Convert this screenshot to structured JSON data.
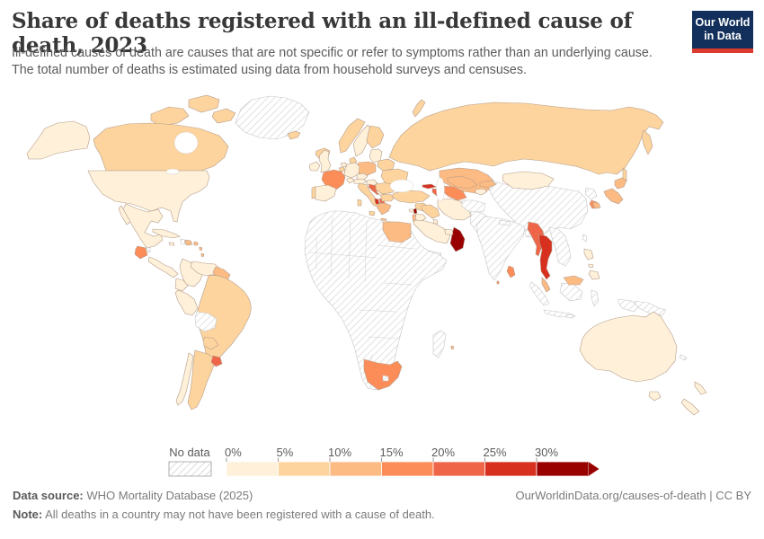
{
  "header": {
    "title": "Share of deaths registered with an ill-defined cause of death, 2023",
    "subtitle_lines": [
      "Ill-defined causes of death are causes that are not specific or refer to symptoms rather than an underlying cause.",
      "The total number of deaths is estimated using data from household surveys and censuses."
    ],
    "logo": {
      "line1": "Our World",
      "line2": "in Data",
      "bg_color": "#12305b",
      "accent_color": "#dc3b2e"
    }
  },
  "chart_data": {
    "type": "choropleth-map",
    "metric": "Share of deaths registered with an ill-defined cause of death",
    "year": "2023",
    "legend": {
      "no_data_label": "No data",
      "tick_labels": [
        "0%",
        "5%",
        "10%",
        "15%",
        "20%",
        "25%",
        "30%"
      ],
      "bins": [
        "0-5%",
        "5-10%",
        "10-15%",
        "15-20%",
        "20-25%",
        "25-30%",
        "30%+"
      ],
      "bin_colors": {
        "0-5%": "#fef0d9",
        "5-10%": "#fdd49e",
        "10-15%": "#fdbb84",
        "15-20%": "#fc8d59",
        "20-25%": "#ef6548",
        "25-30%": "#d7301f",
        "30%+": "#990000"
      }
    },
    "regions": {
      "united-states": "0-5%",
      "canada": "5-10%",
      "greenland": "no-data",
      "mexico": "0-5%",
      "guatemala": "15-20%",
      "belize": "no-data",
      "central-america": "0-5%",
      "cuba": "0-5%",
      "jamaica": "0-5%",
      "haiti": "no-data",
      "dominican-republic": "10-15%",
      "puerto-rico": "10-15%",
      "lesser-antilles": "10-15%",
      "colombia": "0-5%",
      "venezuela": "0-5%",
      "ecuador": "0-5%",
      "peru": "0-5%",
      "chile": "0-5%",
      "guyanas": "10-15%",
      "brazil": "5-10%",
      "bolivia": "no-data",
      "paraguay": "5-10%",
      "argentina": "5-10%",
      "uruguay": "20-25%",
      "iceland": "5-10%",
      "ireland": "0-5%",
      "united-kingdom": "0-5%",
      "norway": "5-10%",
      "sweden": "0-5%",
      "finland": "5-10%",
      "denmark": "5-10%",
      "baltic-states": "0-5%",
      "belarus": "5-10%",
      "poland": "10-15%",
      "germany": "0-5%",
      "netherlands": "0-5%",
      "belgium": "5-10%",
      "france": "15-20%",
      "spain": "0-5%",
      "portugal": "5-10%",
      "switzerland": "0-5%",
      "czechia": "0-5%",
      "austria": "0-5%",
      "hungary": "0-5%",
      "italy": "5-10%",
      "croatia-bosnia": "20-25%",
      "serbia": "0-5%",
      "albania": "25-30%",
      "north-macedonia": "20-25%",
      "greece": "10-15%",
      "bulgaria": "5-10%",
      "romania": "5-10%",
      "ukraine": "5-10%",
      "russia": "5-10%",
      "kazakhstan": "10-15%",
      "mongolia": "0-5%",
      "china": "no-data",
      "taiwan": "no-data",
      "north-korea": "no-data",
      "south-korea": "15-20%",
      "japan": "10-15%",
      "turkey": "5-10%",
      "cyprus": "0-5%",
      "georgia": "25-30%",
      "azerbaijan": "20-25%",
      "syria": "5-10%",
      "lebanon": "30%+",
      "israel": "10-15%",
      "jordan": "0-5%",
      "iraq": "5-10%",
      "saudi-arabia": "0-5%",
      "yemen": "no-data",
      "oman": "30%+",
      "united-arab-emirates": "0-5%",
      "kuwait": "0-5%",
      "iran": "0-5%",
      "turkmenistan": "15-20%",
      "uzbekistan": "10-15%",
      "kyrgyzstan": "10-15%",
      "tajikistan": "0-5%",
      "afghanistan": "no-data",
      "pakistan": "no-data",
      "india": "no-data",
      "nepal": "no-data",
      "bangladesh": "no-data",
      "sri-lanka": "15-20%",
      "maldives": "15-20%",
      "myanmar": "20-25%",
      "thailand": "25-30%",
      "indochina": "no-data",
      "malaysia": "10-15%",
      "indonesia": "no-data",
      "philippines": "0-5%",
      "papua-new-guinea": "no-data",
      "new-caledonia": "no-data",
      "egypt": "10-15%",
      "africa-mainland": "no-data",
      "madagascar": "no-data",
      "mauritius": "10-15%",
      "south-africa": "15-20%",
      "lesotho": "no-data",
      "australia": "0-5%",
      "new-zealand": "0-5%"
    }
  },
  "footer": {
    "source_label": "Data source:",
    "source_value": " WHO Mortality Database (2025)",
    "attribution": "OurWorldinData.org/causes-of-death | CC BY",
    "note_label": "Note:",
    "note_value": " All deaths in a country may not have been registered with a cause of death."
  }
}
